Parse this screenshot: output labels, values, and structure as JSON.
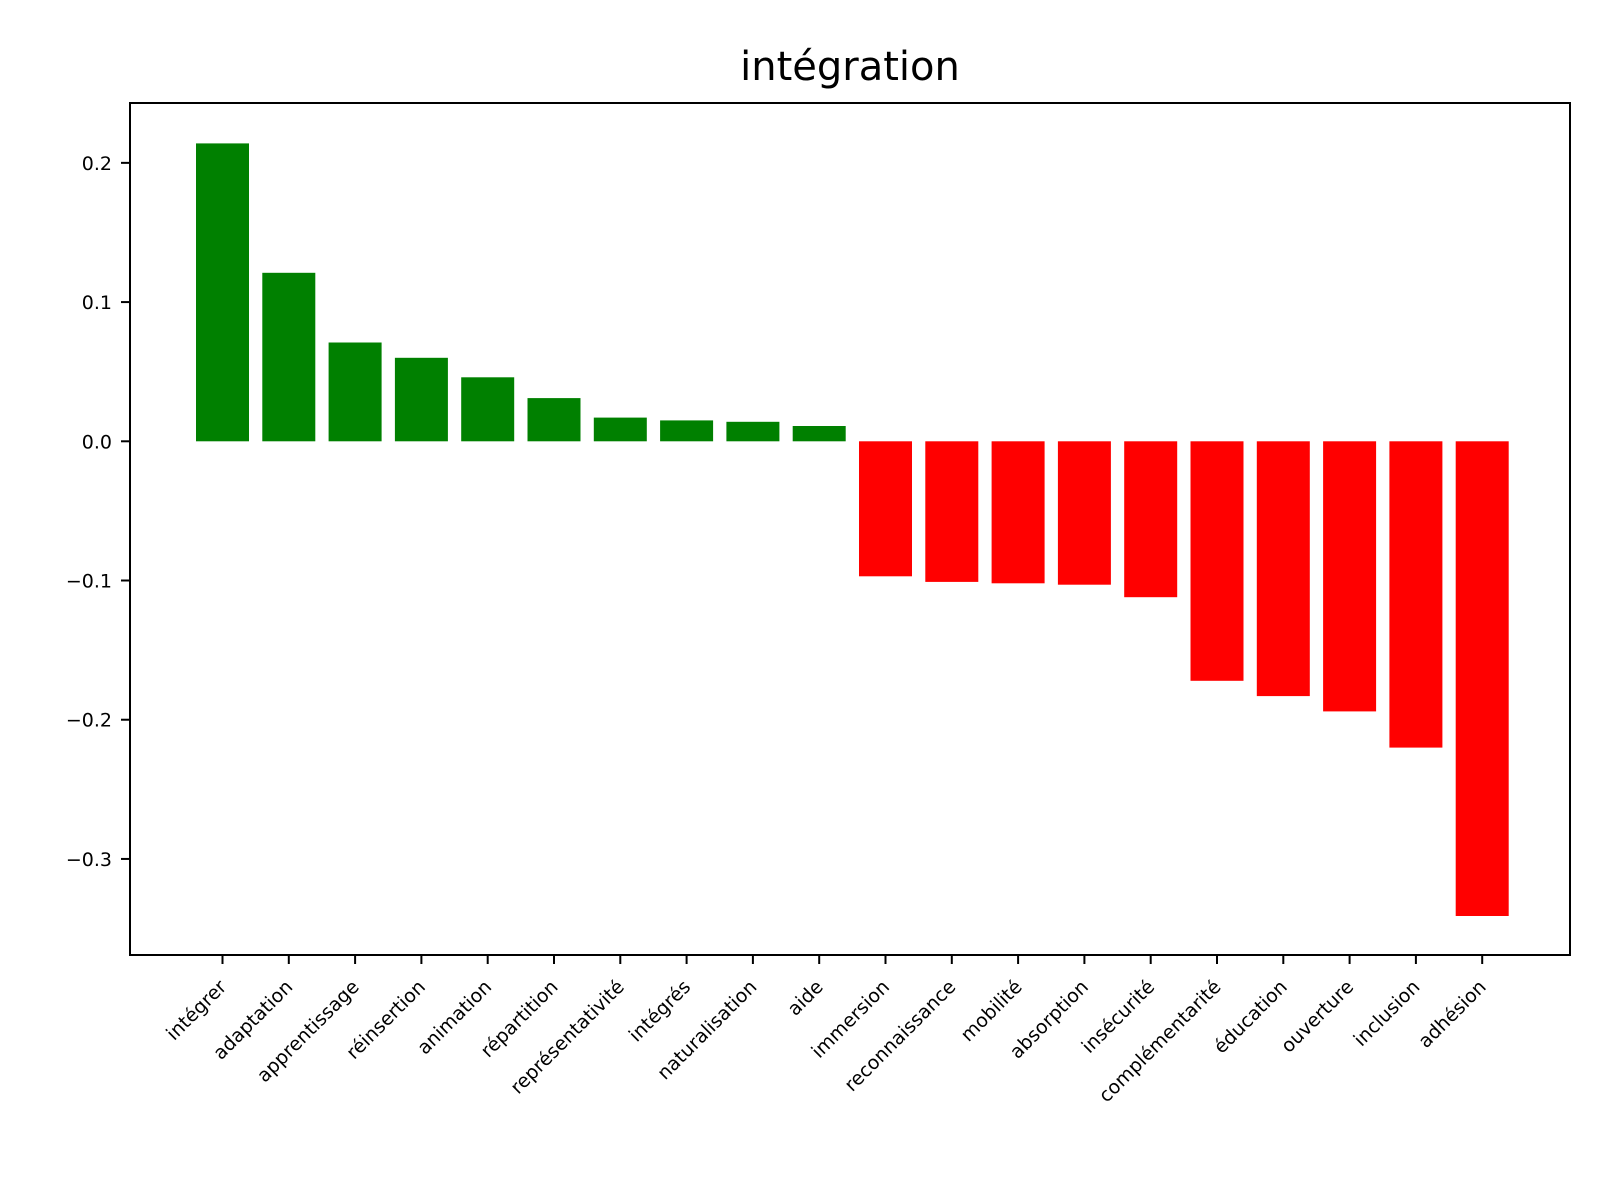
{
  "chart_data": {
    "type": "bar",
    "title": "intégration",
    "xlabel": "",
    "ylabel": "",
    "categories": [
      "intégrer",
      "adaptation",
      "apprentissage",
      "réinsertion",
      "animation",
      "répartition",
      "représentativité",
      "intégrés",
      "naturalisation",
      "aide",
      "immersion",
      "reconnaissance",
      "mobilité",
      "absorption",
      "insécurité",
      "complémentarité",
      "éducation",
      "ouverture",
      "inclusion",
      "adhésion"
    ],
    "values": [
      0.214,
      0.121,
      0.071,
      0.06,
      0.046,
      0.031,
      0.017,
      0.015,
      0.014,
      0.011,
      -0.097,
      -0.101,
      -0.102,
      -0.103,
      -0.112,
      -0.172,
      -0.183,
      -0.194,
      -0.22,
      -0.341
    ],
    "ylim": [
      -0.369,
      0.243
    ],
    "yticks": [
      0.2,
      0.1,
      0.0,
      -0.1,
      -0.2,
      -0.3
    ],
    "ytick_labels": [
      "0.2",
      "0.1",
      "0.0",
      "−0.1",
      "−0.2",
      "−0.3"
    ],
    "colors": {
      "positive": "#008000",
      "negative": "#ff0000"
    },
    "grid": false,
    "legend": "none"
  }
}
